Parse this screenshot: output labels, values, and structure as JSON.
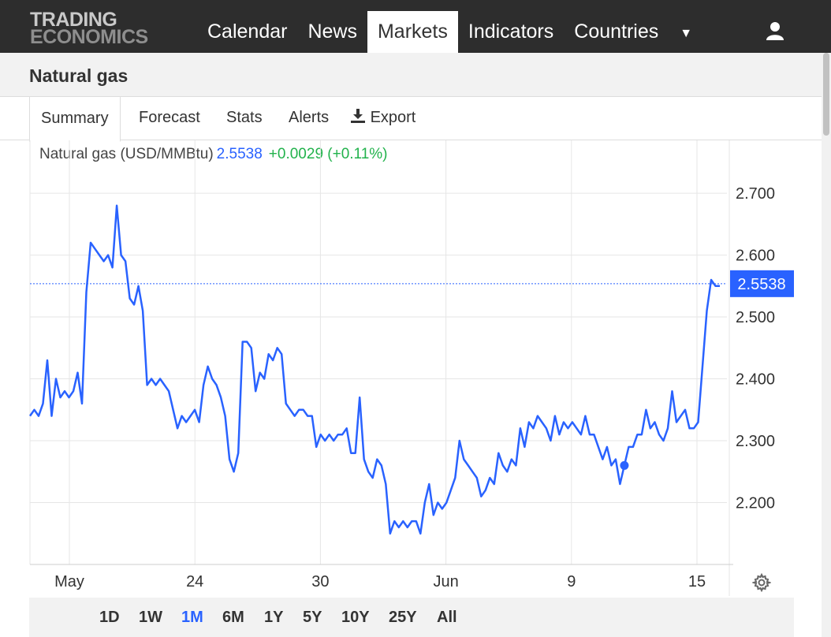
{
  "header": {
    "logo_line1": "TRADING",
    "logo_line2": "ECONOMICS",
    "nav": [
      "Calendar",
      "News",
      "Markets",
      "Indicators",
      "Countries"
    ],
    "active_nav": "Markets",
    "user_icon": "user-icon",
    "more_icon": "caret-down-icon"
  },
  "page": {
    "title": "Natural gas"
  },
  "tabs": [
    "Summary",
    "Forecast",
    "Stats",
    "Alerts",
    "Export"
  ],
  "active_tab": "Summary",
  "export_icon": "download-icon",
  "quote": {
    "name": "Natural gas (USD/MMBtu)",
    "price": "2.5538",
    "change": "+0.0029 (+0.11%)"
  },
  "range_buttons": [
    "1D",
    "1W",
    "1M",
    "6M",
    "1Y",
    "5Y",
    "10Y",
    "25Y",
    "All"
  ],
  "active_range": "1M",
  "colors": {
    "line": "#2962ff",
    "up": "#22b24c",
    "topbar": "#2d2d2d",
    "price_tag": "#2962ff"
  },
  "settings_icon": "gear-icon",
  "chart_data": {
    "type": "line",
    "x_ticks": [
      "May",
      "24",
      "30",
      "Jun",
      "9",
      "15"
    ],
    "y_ticks": [
      "2.700",
      "2.600",
      "2.500",
      "2.400",
      "2.300",
      "2.200"
    ],
    "ylim": [
      2.1,
      2.76
    ],
    "last_value_label": "2.5538",
    "current_line": 2.5538,
    "grid": true,
    "series": [
      {
        "values": [
          2.34,
          2.35,
          2.34,
          2.36,
          2.43,
          2.34,
          2.4,
          2.37,
          2.38,
          2.37,
          2.38,
          2.41,
          2.36,
          2.54,
          2.62,
          2.61,
          2.6,
          2.59,
          2.6,
          2.58,
          2.68,
          2.6,
          2.59,
          2.53,
          2.52,
          2.55,
          2.51,
          2.39,
          2.4,
          2.39,
          2.4,
          2.39,
          2.38,
          2.35,
          2.32,
          2.34,
          2.33,
          2.34,
          2.35,
          2.33,
          2.39,
          2.42,
          2.4,
          2.39,
          2.37,
          2.34,
          2.27,
          2.25,
          2.28,
          2.46,
          2.46,
          2.45,
          2.38,
          2.41,
          2.4,
          2.44,
          2.43,
          2.45,
          2.44,
          2.36,
          2.35,
          2.34,
          2.35,
          2.35,
          2.34,
          2.34,
          2.29,
          2.31,
          2.3,
          2.31,
          2.3,
          2.31,
          2.31,
          2.32,
          2.28,
          2.28,
          2.37,
          2.27,
          2.25,
          2.24,
          2.27,
          2.26,
          2.23,
          2.15,
          2.17,
          2.16,
          2.17,
          2.16,
          2.17,
          2.17,
          2.15,
          2.2,
          2.23,
          2.18,
          2.2,
          2.19,
          2.2,
          2.22,
          2.24,
          2.3,
          2.27,
          2.26,
          2.25,
          2.24,
          2.21,
          2.22,
          2.24,
          2.23,
          2.28,
          2.26,
          2.25,
          2.27,
          2.26,
          2.32,
          2.29,
          2.33,
          2.32,
          2.34,
          2.33,
          2.32,
          2.3,
          2.34,
          2.31,
          2.33,
          2.32,
          2.33,
          2.32,
          2.31,
          2.34,
          2.31,
          2.31,
          2.29,
          2.27,
          2.29,
          2.26,
          2.27,
          2.23,
          2.26,
          2.29,
          2.29,
          2.31,
          2.31,
          2.35,
          2.32,
          2.33,
          2.31,
          2.3,
          2.32,
          2.38,
          2.33,
          2.34,
          2.35,
          2.32,
          2.32,
          2.33,
          2.42,
          2.51,
          2.56,
          2.55,
          2.55
        ]
      }
    ]
  }
}
